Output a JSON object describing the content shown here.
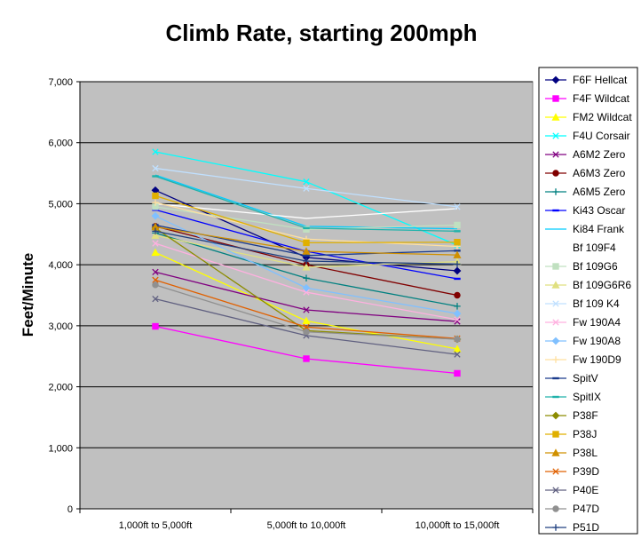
{
  "chart_data": {
    "type": "line",
    "title": "Climb Rate, starting 200mph",
    "xlabel": "",
    "ylabel": "Feet/Minute",
    "categories": [
      "1,000ft to 5,000ft",
      "5,000ft to 10,000ft",
      "10,000ft to 15,000ft"
    ],
    "ylim": [
      0,
      7000
    ],
    "yticks": [
      "0",
      "1,000",
      "2,000",
      "3,000",
      "4,000",
      "5,000",
      "6,000",
      "7,000"
    ],
    "grid": "horizontal",
    "legend_position": "right",
    "plot_background": "#c0c0c0",
    "series": [
      {
        "name": "F6F Hellcat",
        "color": "#000080",
        "marker": "diamond",
        "values": [
          5220,
          4120,
          3900
        ]
      },
      {
        "name": "F4F Wildcat",
        "color": "#ff00ff",
        "marker": "square",
        "values": [
          2990,
          2460,
          2220
        ]
      },
      {
        "name": "FM2 Wildcat",
        "color": "#ffff00",
        "marker": "triangle",
        "values": [
          4200,
          3080,
          2620
        ]
      },
      {
        "name": "F4U Corsair",
        "color": "#00ffff",
        "marker": "x",
        "values": [
          5850,
          5360,
          4320
        ]
      },
      {
        "name": "A6M2 Zero",
        "color": "#800080",
        "marker": "x",
        "values": [
          3880,
          3260,
          3070
        ]
      },
      {
        "name": "A6M3 Zero",
        "color": "#800000",
        "marker": "circle",
        "values": [
          4630,
          4000,
          3500
        ]
      },
      {
        "name": "A6M5 Zero",
        "color": "#008080",
        "marker": "plus",
        "values": [
          4520,
          3780,
          3320
        ]
      },
      {
        "name": "Ki43 Oscar",
        "color": "#0000ff",
        "marker": "dash",
        "values": [
          4900,
          4220,
          3770
        ]
      },
      {
        "name": "Ki84 Frank",
        "color": "#00ccff",
        "marker": "none",
        "values": [
          5470,
          4630,
          4590
        ]
      },
      {
        "name": "Bf 109F4",
        "color": "#ffffff",
        "marker": "none",
        "values": [
          5000,
          4760,
          4920
        ]
      },
      {
        "name": "Bf 109G6",
        "color": "#c0e0c0",
        "marker": "square",
        "values": [
          4950,
          4580,
          4650
        ]
      },
      {
        "name": "Bf 109G6R6",
        "color": "#e0e080",
        "marker": "triangle",
        "values": [
          4480,
          3960,
          4050
        ]
      },
      {
        "name": "Bf 109 K4",
        "color": "#c0e0ff",
        "marker": "x",
        "values": [
          5580,
          5250,
          4950
        ]
      },
      {
        "name": "Fw 190A4",
        "color": "#ffb0e0",
        "marker": "x",
        "values": [
          4350,
          3550,
          3100
        ]
      },
      {
        "name": "Fw 190A8",
        "color": "#80c0ff",
        "marker": "diamond",
        "values": [
          4800,
          3620,
          3200
        ]
      },
      {
        "name": "Fw 190D9",
        "color": "#ffe0a0",
        "marker": "plus",
        "values": [
          5020,
          4420,
          4300
        ]
      },
      {
        "name": "SpitV",
        "color": "#1a3a8c",
        "marker": "dash",
        "values": [
          4650,
          4150,
          4230
        ]
      },
      {
        "name": "SpitIX",
        "color": "#20b2aa",
        "marker": "dash",
        "values": [
          5450,
          4600,
          4550
        ]
      },
      {
        "name": "P38F",
        "color": "#8c8c00",
        "marker": "diamond",
        "values": [
          4600,
          2920,
          2780
        ]
      },
      {
        "name": "P38J",
        "color": "#e0b000",
        "marker": "square",
        "values": [
          5130,
          4360,
          4370
        ]
      },
      {
        "name": "P38L",
        "color": "#d09000",
        "marker": "triangle",
        "values": [
          4620,
          4220,
          4160
        ]
      },
      {
        "name": "P39D",
        "color": "#e06000",
        "marker": "x",
        "values": [
          3750,
          2980,
          2790
        ]
      },
      {
        "name": "P40E",
        "color": "#606080",
        "marker": "x",
        "values": [
          3440,
          2840,
          2530
        ]
      },
      {
        "name": "P47D",
        "color": "#909090",
        "marker": "circle",
        "values": [
          3670,
          2900,
          2780
        ]
      },
      {
        "name": "P51D",
        "color": "#204080",
        "marker": "plus",
        "values": [
          4550,
          4060,
          4010
        ]
      }
    ]
  }
}
